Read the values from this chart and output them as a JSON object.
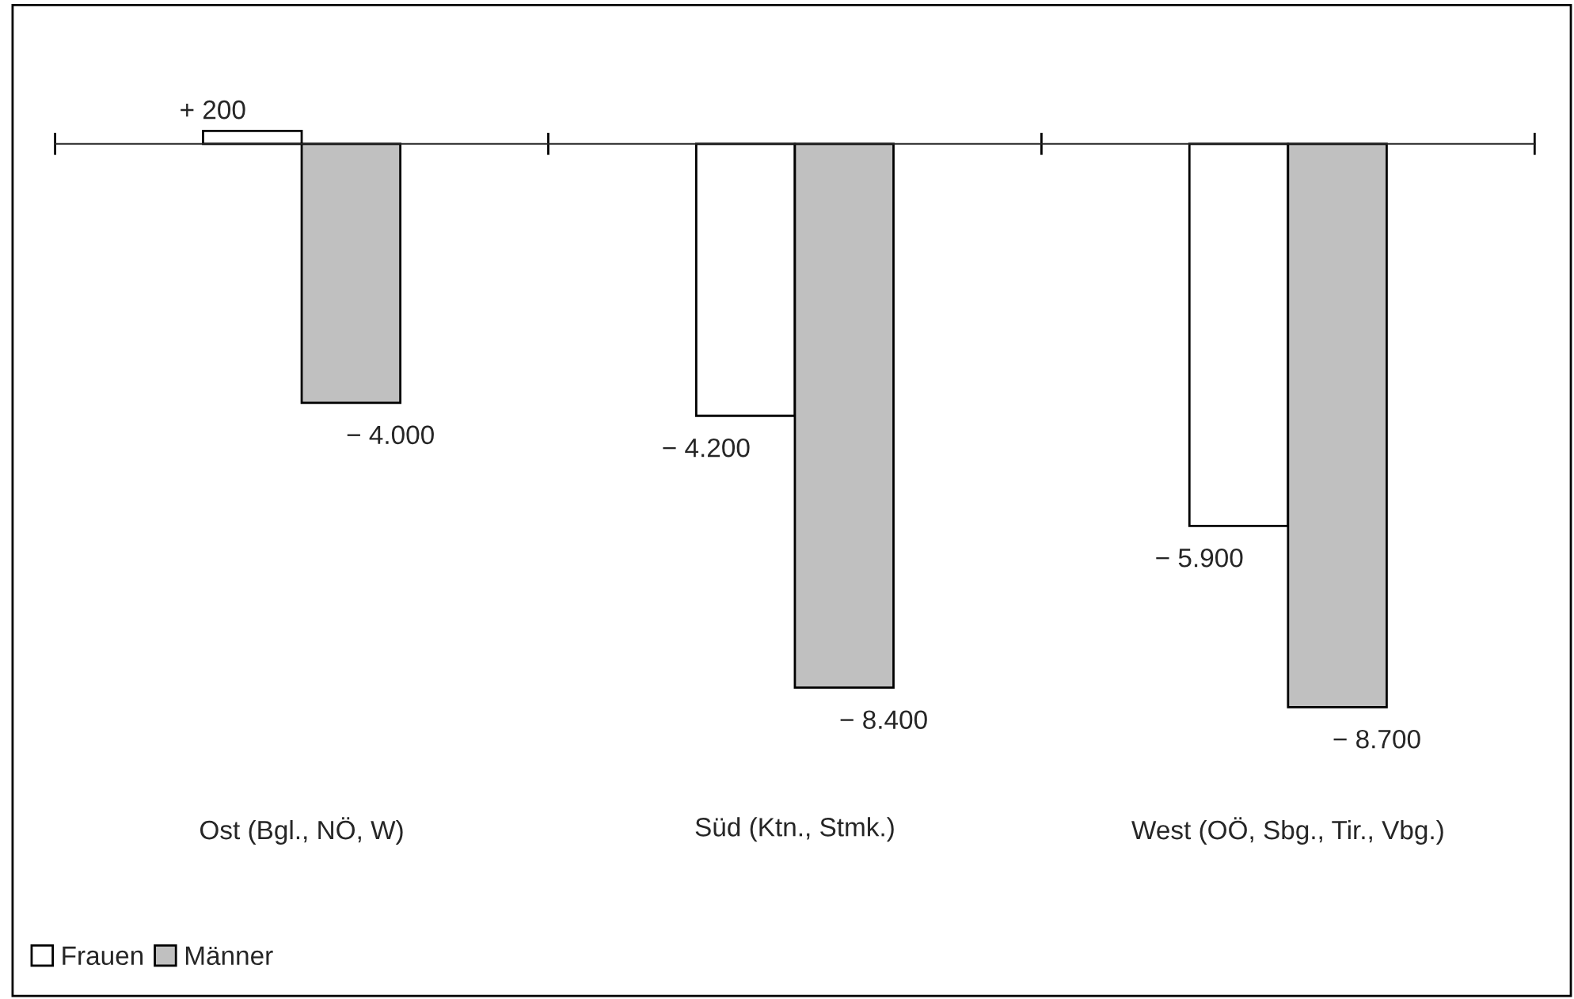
{
  "chart_data": {
    "type": "bar",
    "categories": [
      "Ost (Bgl., NÖ, W)",
      "Süd (Ktn., Stmk.)",
      "West (OÖ, Sbg., Tir., Vbg.)"
    ],
    "series": [
      {
        "name": "Frauen",
        "color": "#ffffff",
        "values": [
          200,
          -4200,
          -5900
        ],
        "value_labels": [
          "+ 200",
          "− 4.200",
          "− 5.900"
        ]
      },
      {
        "name": "Männer",
        "color": "#c0c0c0",
        "values": [
          -4000,
          -8400,
          -8700
        ],
        "value_labels": [
          "− 4.000",
          "− 8.400",
          "− 8.700"
        ]
      }
    ],
    "legend": "bottom left",
    "grid": false
  }
}
